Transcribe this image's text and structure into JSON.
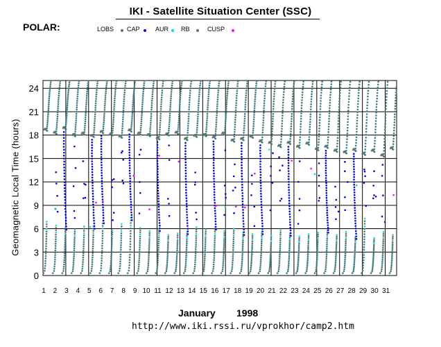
{
  "header": {
    "title": "IKI - Satellite Situation Center (SSC)",
    "satellite": "POLAR:",
    "url": "http://www.iki.rssi.ru/vprokhor/camp2.htm"
  },
  "legend": [
    {
      "label": "LOBS",
      "color": "#3f7f7f"
    },
    {
      "label": "CAP",
      "color": "#0000e0"
    },
    {
      "label": "AUR",
      "color": "#00e0e0"
    },
    {
      "label": "RB",
      "color": "#707070"
    },
    {
      "label": "CUSP",
      "color": "#ff00ff"
    }
  ],
  "footer": {
    "month": "January",
    "year": "1998"
  },
  "chart_data": {
    "type": "scatter",
    "title": "IKI - Satellite Situation Center (SSC)",
    "ylabel": "Geomagnetic Local Time (hours)",
    "xlabel": "January 1998",
    "xlim": [
      1,
      32
    ],
    "ylim": [
      0,
      25
    ],
    "yticks": [
      0,
      3,
      6,
      9,
      12,
      15,
      18,
      21,
      24
    ],
    "xticks": [
      1,
      2,
      3,
      4,
      5,
      6,
      7,
      8,
      9,
      10,
      11,
      12,
      13,
      14,
      15,
      16,
      17,
      18,
      19,
      20,
      21,
      22,
      23,
      24,
      25,
      26,
      27,
      28,
      29,
      30,
      31
    ],
    "grid": true,
    "series": [
      {
        "name": "LOBS",
        "color": "#3f7f7f",
        "description": "nightside/morning orbit segments rising from ~0-5 h and dayside segments near 17-25 h"
      },
      {
        "name": "CAP",
        "color": "#0000e0",
        "description": "polar cap crossings sweeping from ~18 h down to ~6 h"
      },
      {
        "name": "AUR",
        "color": "#00e0e0",
        "description": "auroral zone points near 5-8 h and 16-18 h"
      },
      {
        "name": "RB",
        "color": "#707070",
        "description": "radiation belt points near 4-7 h and 17-19 h"
      },
      {
        "name": "CUSP",
        "color": "#ff00ff",
        "description": "scattered cusp points between 8 and 16 h"
      }
    ],
    "orbits": [
      {
        "x": 1.0,
        "dusk": 18.7,
        "dawnTop": 6.9,
        "cap": "none"
      },
      {
        "x": 1.82,
        "dusk": 18.3,
        "dawnTop": 6.4,
        "cap": "partial"
      },
      {
        "x": 2.64,
        "dusk": 18.9,
        "dawnTop": 6.2,
        "cap": "full"
      },
      {
        "x": 3.46,
        "dusk": 18.0,
        "dawnTop": 5.9,
        "cap": "partial"
      },
      {
        "x": 4.28,
        "dusk": 18.2,
        "dawnTop": 6.3,
        "cap": "partial"
      },
      {
        "x": 5.1,
        "dusk": 17.9,
        "dawnTop": 6.3,
        "cap": "full"
      },
      {
        "x": 5.92,
        "dusk": 18.4,
        "dawnTop": 7.0,
        "cap": "full"
      },
      {
        "x": 6.74,
        "dusk": 18.1,
        "dawnTop": 5.8,
        "cap": "partial"
      },
      {
        "x": 7.56,
        "dusk": 17.8,
        "dawnTop": 6.6,
        "cap": "partial"
      },
      {
        "x": 8.38,
        "dusk": 18.6,
        "dawnTop": 7.4,
        "cap": "full"
      },
      {
        "x": 9.2,
        "dusk": 18.2,
        "dawnTop": 6.1,
        "cap": "partial"
      },
      {
        "x": 10.02,
        "dusk": 18.0,
        "dawnTop": 5.7,
        "cap": "none"
      },
      {
        "x": 10.84,
        "dusk": 17.6,
        "dawnTop": 6.0,
        "cap": "full"
      },
      {
        "x": 11.66,
        "dusk": 18.1,
        "dawnTop": 5.2,
        "cap": "partial"
      },
      {
        "x": 12.48,
        "dusk": 18.3,
        "dawnTop": 5.4,
        "cap": "none"
      },
      {
        "x": 13.3,
        "dusk": 17.5,
        "dawnTop": 5.6,
        "cap": "full"
      },
      {
        "x": 14.12,
        "dusk": 17.9,
        "dawnTop": 6.2,
        "cap": "partial"
      },
      {
        "x": 14.94,
        "dusk": 18.0,
        "dawnTop": 5.9,
        "cap": "none"
      },
      {
        "x": 15.76,
        "dusk": 17.7,
        "dawnTop": 6.2,
        "cap": "full"
      },
      {
        "x": 16.58,
        "dusk": 18.2,
        "dawnTop": 5.7,
        "cap": "partial"
      },
      {
        "x": 17.4,
        "dusk": 17.3,
        "dawnTop": 6.0,
        "cap": "partial"
      },
      {
        "x": 18.22,
        "dusk": 17.5,
        "dawnTop": 5.5,
        "cap": "full"
      },
      {
        "x": 19.04,
        "dusk": 17.8,
        "dawnTop": 5.3,
        "cap": "partial"
      },
      {
        "x": 19.86,
        "dusk": 17.2,
        "dawnTop": 5.6,
        "cap": "full"
      },
      {
        "x": 20.68,
        "dusk": 17.0,
        "dawnTop": 5.1,
        "cap": "partial"
      },
      {
        "x": 21.5,
        "dusk": 16.6,
        "dawnTop": 5.8,
        "cap": "partial"
      },
      {
        "x": 22.32,
        "dusk": 17.0,
        "dawnTop": 5.4,
        "cap": "full"
      },
      {
        "x": 23.14,
        "dusk": 16.5,
        "dawnTop": 5.0,
        "cap": "partial"
      },
      {
        "x": 23.96,
        "dusk": 16.9,
        "dawnTop": 5.3,
        "cap": "none"
      },
      {
        "x": 24.78,
        "dusk": 16.2,
        "dawnTop": 5.5,
        "cap": "partial"
      },
      {
        "x": 25.6,
        "dusk": 16.5,
        "dawnTop": 5.8,
        "cap": "full"
      },
      {
        "x": 26.42,
        "dusk": 16.0,
        "dawnTop": 5.2,
        "cap": "partial"
      },
      {
        "x": 27.24,
        "dusk": 15.8,
        "dawnTop": 5.6,
        "cap": "partial"
      },
      {
        "x": 28.06,
        "dusk": 16.1,
        "dawnTop": 5.0,
        "cap": "full"
      },
      {
        "x": 28.88,
        "dusk": 15.6,
        "dawnTop": 7.3,
        "cap": "partial"
      },
      {
        "x": 29.7,
        "dusk": 16.0,
        "dawnTop": 4.8,
        "cap": "partial"
      },
      {
        "x": 30.52,
        "dusk": 15.4,
        "dawnTop": 5.6,
        "cap": "partial"
      },
      {
        "x": 31.34,
        "dusk": 16.3,
        "dawnTop": 5.2,
        "cap": "none"
      }
    ]
  }
}
